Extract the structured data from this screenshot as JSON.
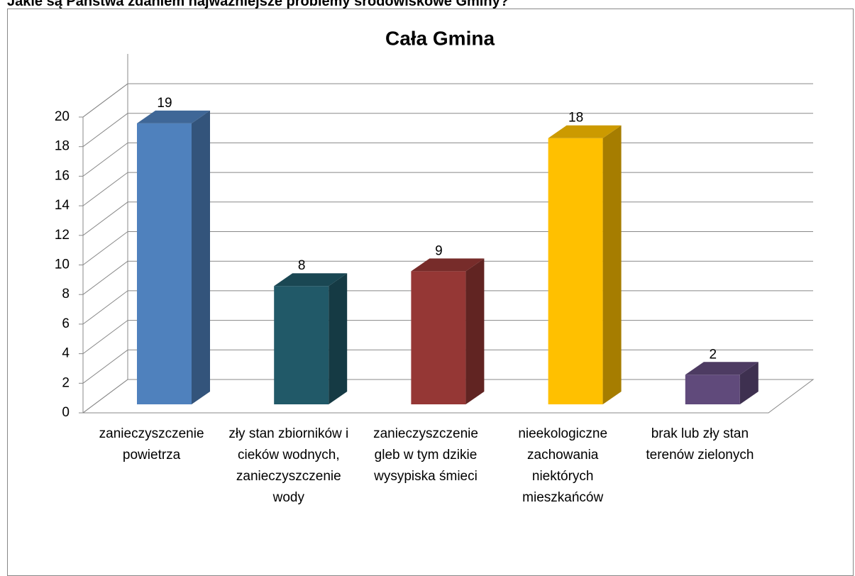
{
  "heading": "Jakie są Państwa zdaniem najważniejsze problemy środowiskowe Gminy?",
  "chart_data": {
    "type": "bar3d",
    "title": "Cała Gmina",
    "categories": [
      "zanieczyszczenie powietrza",
      "zły stan zbiorników i cieków wodnych, zanieczyszczenie wody",
      "zanieczyszczenie gleb w tym dzikie wysypiska śmieci",
      "nieekologiczne zachowania niektórych mieszkańców",
      "brak lub zły stan terenów zielonych"
    ],
    "values": [
      19,
      8,
      9,
      18,
      2
    ],
    "colors": [
      "#4f81bd",
      "#215968",
      "#953735",
      "#ffc000",
      "#604a7b"
    ],
    "ylim": [
      0,
      20
    ],
    "yticks": [
      0,
      2,
      4,
      6,
      8,
      10,
      12,
      14,
      16,
      18,
      20
    ],
    "grid": true
  }
}
